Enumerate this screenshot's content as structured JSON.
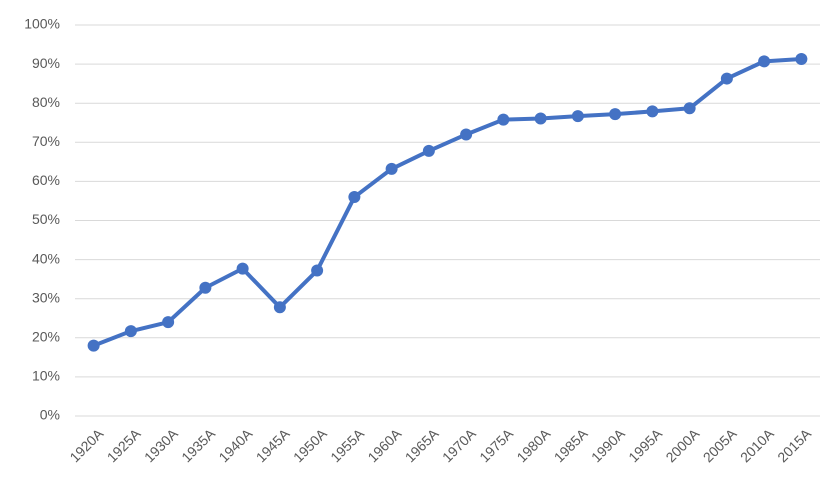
{
  "chart_data": {
    "type": "line",
    "categories": [
      "1920A",
      "1925A",
      "1930A",
      "1935A",
      "1940A",
      "1945A",
      "1950A",
      "1955A",
      "1960A",
      "1965A",
      "1970A",
      "1975A",
      "1980A",
      "1985A",
      "1990A",
      "1995A",
      "2000A",
      "2005A",
      "2010A",
      "2015A"
    ],
    "values": [
      18,
      21.7,
      24,
      32.8,
      37.7,
      27.8,
      37.2,
      56,
      63.2,
      67.8,
      72,
      75.8,
      76.1,
      76.7,
      77.2,
      77.9,
      78.7,
      86.3,
      90.7,
      91.3
    ],
    "color": "#4472c4",
    "ylim": [
      0,
      100
    ],
    "yticks": [
      {
        "value": 0,
        "label": "0%"
      },
      {
        "value": 10,
        "label": "10%"
      },
      {
        "value": 20,
        "label": "20%"
      },
      {
        "value": 30,
        "label": "30%"
      },
      {
        "value": 40,
        "label": "40%"
      },
      {
        "value": 50,
        "label": "50%"
      },
      {
        "value": 60,
        "label": "60%"
      },
      {
        "value": 70,
        "label": "70%"
      },
      {
        "value": 80,
        "label": "80%"
      },
      {
        "value": 90,
        "label": "90%"
      },
      {
        "value": 100,
        "label": "100%"
      }
    ],
    "grid": true
  }
}
